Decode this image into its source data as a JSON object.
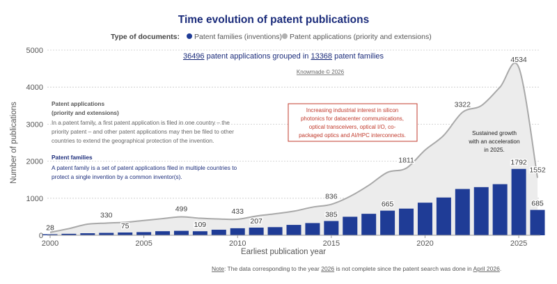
{
  "chart_data": {
    "type": "bar",
    "title": "Time evolution of patent publications",
    "legend": {
      "label": "Type of documents:",
      "items": [
        {
          "name": "Patent families (inventions)",
          "color": "#1f3c96"
        },
        {
          "name": "Patent applications (priority and extensions)",
          "color": "#b0b0b0"
        }
      ]
    },
    "xlabel": "Earliest publication year",
    "ylabel": "Number of publications",
    "xlim": [
      2000,
      2026
    ],
    "ylim": [
      0,
      5000
    ],
    "xticks": [
      "2000",
      "2005",
      "2010",
      "2015",
      "2020",
      "2025"
    ],
    "yticks": [
      "0",
      "1000",
      "2000",
      "3000",
      "4000",
      "5000"
    ],
    "grid": true,
    "colors": {
      "families": "#1f3c96",
      "applications_line": "#a8a8a8",
      "applications_fill": "#ececec",
      "title": "#1a2b7a",
      "annotation_red": "#c0392b"
    },
    "years": [
      2000,
      2001,
      2002,
      2003,
      2004,
      2005,
      2006,
      2007,
      2008,
      2009,
      2010,
      2011,
      2012,
      2013,
      2014,
      2015,
      2016,
      2017,
      2018,
      2019,
      2020,
      2021,
      2022,
      2023,
      2024,
      2025,
      2026
    ],
    "series": [
      {
        "name": "Patent families (inventions)",
        "type": "bar",
        "values": [
          28,
          40,
          55,
          65,
          75,
          85,
          110,
          120,
          109,
          150,
          190,
          207,
          220,
          280,
          330,
          385,
          500,
          580,
          665,
          720,
          880,
          1020,
          1250,
          1300,
          1380,
          1792,
          685
        ]
      },
      {
        "name": "Patent applications (priority and extensions)",
        "type": "area",
        "values": [
          80,
          180,
          300,
          330,
          350,
          400,
          450,
          499,
          460,
          440,
          433,
          520,
          580,
          650,
          760,
          836,
          1050,
          1350,
          1700,
          1811,
          2300,
          2700,
          3322,
          3500,
          4000,
          4534,
          1552
        ]
      }
    ],
    "bar_labels": [
      {
        "year": 2000,
        "text": "28"
      },
      {
        "year": 2004,
        "text": "75"
      },
      {
        "year": 2008,
        "text": "109"
      },
      {
        "year": 2011,
        "text": "207"
      },
      {
        "year": 2015,
        "text": "385"
      },
      {
        "year": 2018,
        "text": "665"
      },
      {
        "year": 2025,
        "text": "1792"
      },
      {
        "year": 2026,
        "text": "685"
      }
    ],
    "line_labels": [
      {
        "year": 2003,
        "text": "330"
      },
      {
        "year": 2007,
        "text": "499"
      },
      {
        "year": 2010,
        "text": "433"
      },
      {
        "year": 2015,
        "text": "836"
      },
      {
        "year": 2019,
        "text": "1811"
      },
      {
        "year": 2022,
        "text": "3322"
      },
      {
        "year": 2025,
        "text": "4534"
      },
      {
        "year": 2026,
        "text": "1552"
      }
    ],
    "summary": {
      "applications": "36496",
      "text_mid": "patent applications grouped in",
      "families": "13368",
      "text_end": "patent families"
    },
    "copyright": "Knowmade © 2026",
    "definitions": {
      "applications_title_1": "Patent applications",
      "applications_title_2": "(priority and extensions)",
      "applications_lines": [
        "In a patent family, a first patent application is filed in one country – the",
        "priority patent – and other patent applications may then be filed to other",
        "countries to extend the geographical protection of the invention."
      ],
      "families_title": "Patent families",
      "families_lines": [
        "A patent family is a set of patent applications filed in multiple countries to",
        "protect a single invention by a common inventor(s)."
      ]
    },
    "annotation_box_lines": [
      "Increasing industrial interest in silicon",
      "photonics for datacenter communications,",
      "optical transceivers, optical I/O, co-",
      "packaged optics and AI/HPC interconnects."
    ],
    "annotation_growth_lines": [
      "Sustained growth",
      "with an acceleration",
      "in 2025."
    ],
    "note": {
      "label": "Note",
      "text_1": ": The data corresponding to the year ",
      "year": "2026",
      "text_2": " is not complete since the patent search was done in ",
      "month": "April 2026",
      "text_3": "."
    }
  }
}
